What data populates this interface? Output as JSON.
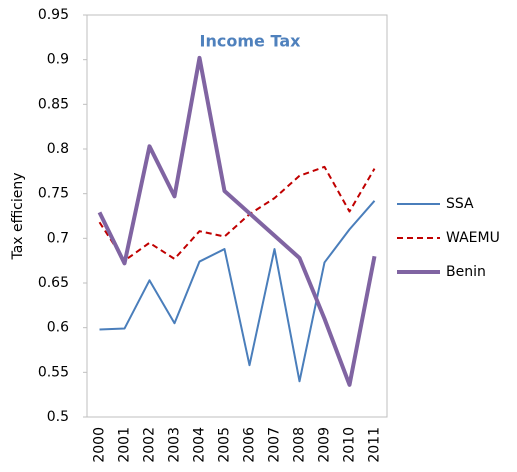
{
  "chart_data": {
    "type": "line",
    "title": "Income Tax",
    "y_label": "Tax efficieny",
    "categories": [
      "2000",
      "2001",
      "2002",
      "2003",
      "2004",
      "2005",
      "2006",
      "2007",
      "2008",
      "2009",
      "2010",
      "2011"
    ],
    "series": [
      {
        "name": "SSA",
        "color": "#4a7ebb",
        "style": "solid",
        "width": 2,
        "values": [
          0.598,
          0.599,
          0.653,
          0.605,
          0.674,
          0.688,
          0.558,
          0.688,
          0.54,
          0.673,
          0.71,
          0.742
        ]
      },
      {
        "name": "WAEMU",
        "color": "#c00000",
        "style": "dashed",
        "width": 2,
        "values": [
          0.718,
          0.675,
          0.695,
          0.677,
          0.708,
          0.702,
          0.727,
          0.745,
          0.77,
          0.78,
          0.73,
          0.778
        ]
      },
      {
        "name": "Benin",
        "color": "#8064a2",
        "style": "solid",
        "width": 4,
        "values": [
          0.729,
          0.672,
          0.803,
          0.747,
          0.902,
          0.753,
          0.728,
          0.703,
          0.678,
          0.61,
          0.536,
          0.68
        ]
      }
    ],
    "ylim": [
      0.5,
      0.95
    ],
    "yticks": [
      0.5,
      0.55,
      0.6,
      0.65,
      0.7,
      0.75,
      0.8,
      0.85,
      0.9,
      0.95
    ],
    "grid": false,
    "legend": "right"
  }
}
